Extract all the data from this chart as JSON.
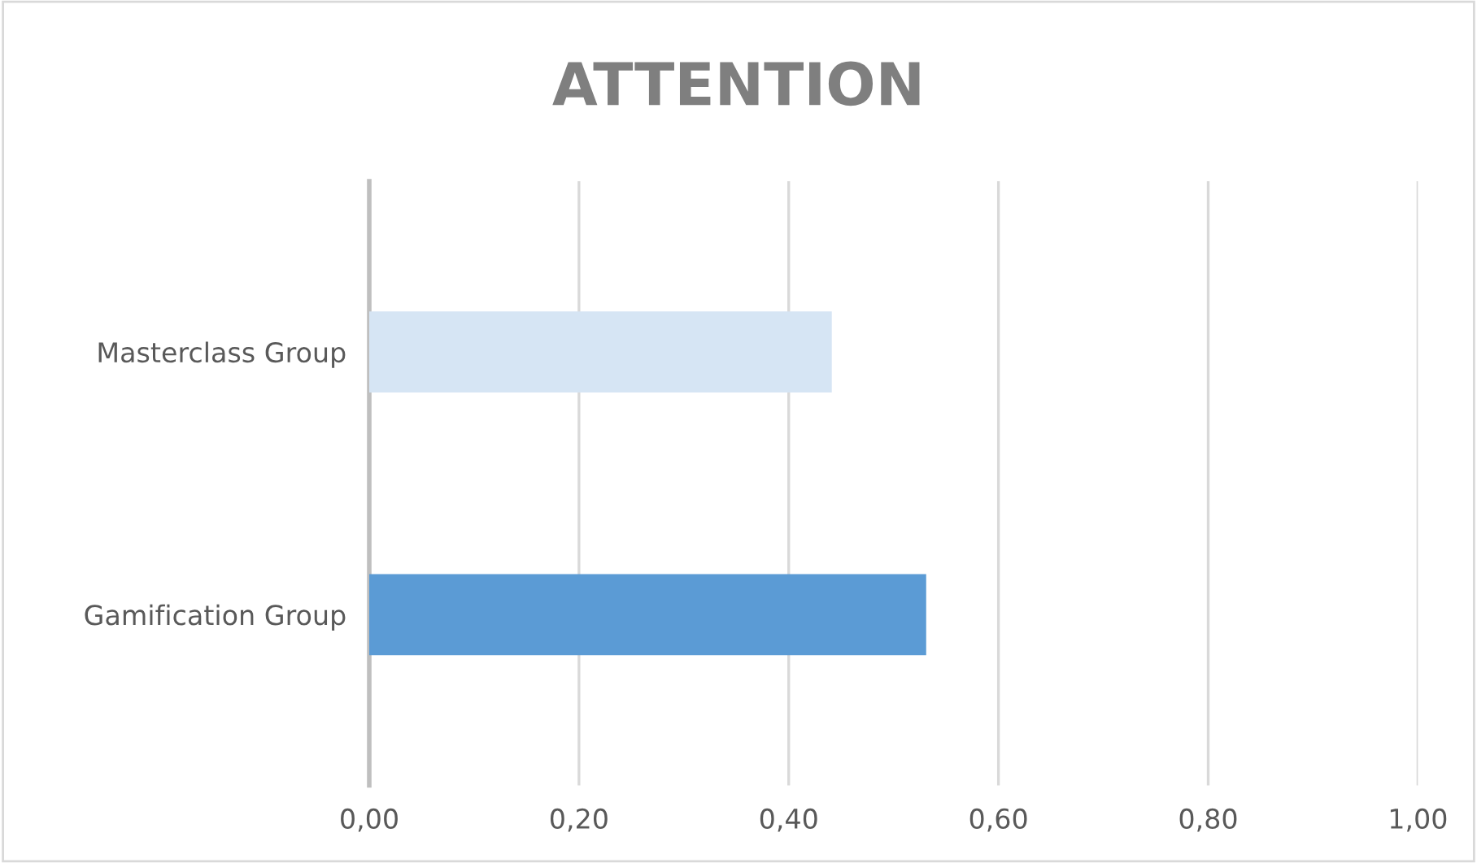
{
  "chart_data": {
    "type": "bar",
    "orientation": "horizontal",
    "title": "ATTENTION",
    "categories": [
      "Masterclass Group",
      "Gamification Group"
    ],
    "values": [
      0.44,
      0.53
    ],
    "colors": [
      "#d6e5f4",
      "#5b9bd5"
    ],
    "xlim": [
      0,
      1
    ],
    "xticks": [
      {
        "value": 0,
        "label": "0,00"
      },
      {
        "value": 0.2,
        "label": "0,20"
      },
      {
        "value": 0.4,
        "label": "0,40"
      },
      {
        "value": 0.6,
        "label": "0,60"
      },
      {
        "value": 0.8,
        "label": "0,80"
      },
      {
        "value": 1,
        "label": "1,00"
      }
    ],
    "grid": "x",
    "legend": false
  }
}
